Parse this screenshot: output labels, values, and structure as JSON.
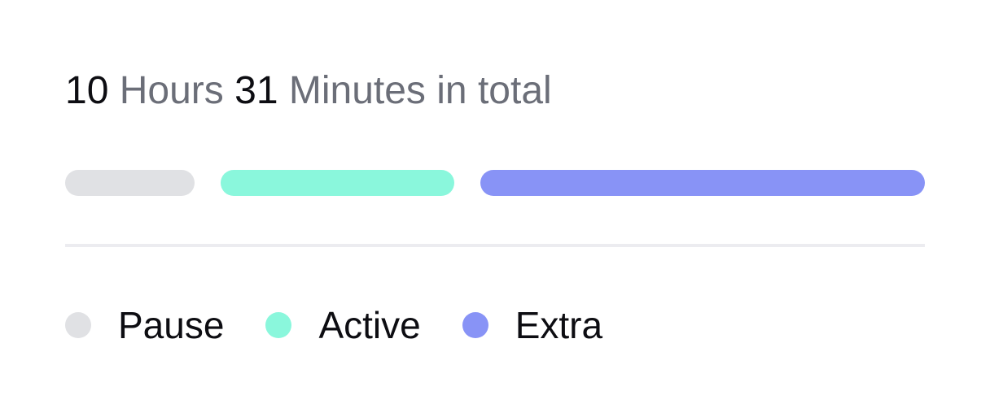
{
  "summary": {
    "hours": "10",
    "hours_label": "Hours",
    "minutes": "31",
    "minutes_label": "Minutes in total"
  },
  "colors": {
    "pause": "#e0e1e4",
    "active": "#8af7dc",
    "extra": "#8893f6",
    "divider": "#ececf0"
  },
  "chart_data": {
    "type": "bar",
    "orientation": "horizontal-stacked",
    "categories": [
      "Pause",
      "Active",
      "Extra"
    ],
    "values": [
      0.16,
      0.29,
      0.55
    ],
    "value_unit": "fraction of total time",
    "colors": [
      "#e0e1e4",
      "#8af7dc",
      "#8893f6"
    ],
    "legend": {
      "placement": "bottom",
      "items": [
        {
          "label": "Pause",
          "color": "#e0e1e4"
        },
        {
          "label": "Active",
          "color": "#8af7dc"
        },
        {
          "label": "Extra",
          "color": "#8893f6"
        }
      ]
    },
    "grid": false
  }
}
